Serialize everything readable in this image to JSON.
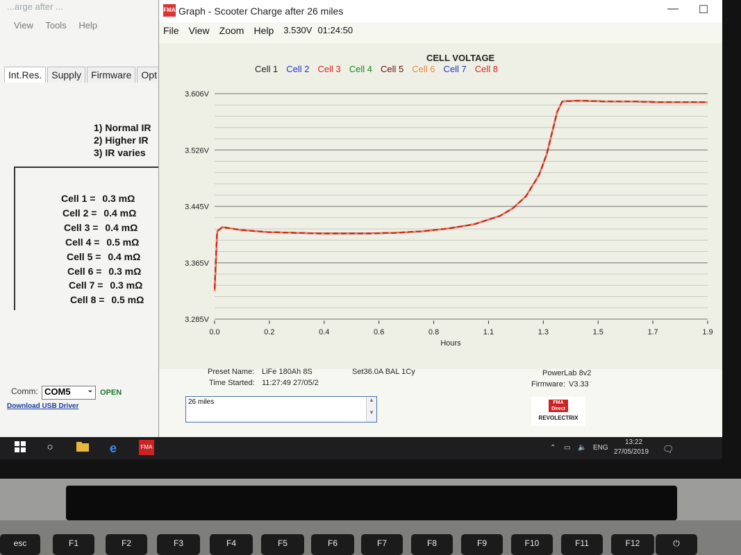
{
  "background_window": {
    "title": "...arge after ...",
    "menu": [
      "View",
      "Tools",
      "Help"
    ],
    "tabs": [
      "Int.Res.",
      "Supply",
      "Firmware",
      "Opt"
    ],
    "ir_notes": [
      "1) Normal IR",
      "2) Higher IR",
      "3) IR varies"
    ],
    "cells": [
      {
        "label": "Cell 1 =",
        "value": "0.3 mΩ"
      },
      {
        "label": "Cell 2 =",
        "value": "0.4 mΩ"
      },
      {
        "label": "Cell 3 =",
        "value": "0.4 mΩ"
      },
      {
        "label": "Cell 4 =",
        "value": "0.5 mΩ"
      },
      {
        "label": "Cell 5 =",
        "value": "0.4 mΩ"
      },
      {
        "label": "Cell 6 =",
        "value": "0.3 mΩ"
      },
      {
        "label": "Cell 7 =",
        "value": "0.3 mΩ"
      },
      {
        "label": "Cell 8 =",
        "value": "0.5 mΩ"
      }
    ],
    "comm_label": "Comm:",
    "comm_port": "COM5",
    "comm_status": "OPEN",
    "usb_link": "Download USB Driver"
  },
  "graph_window": {
    "app_icon_text": "FMA",
    "title": "Graph - Scooter Charge after 26 miles",
    "window_buttons": [
      "—",
      "☐",
      "✕"
    ],
    "menu": [
      "File",
      "View",
      "Zoom",
      "Help"
    ],
    "voltage_readout": "3.530V",
    "time_readout": "01:24:50",
    "preset_name_label": "Preset Name:",
    "preset_name": "LiFe 180Ah 8S",
    "preset_settings": "Set36.0A BAL 1Cy",
    "time_started_label": "Time Started:",
    "time_started": "11:27:49  27/05/2",
    "device": "PowerLab 8v2",
    "firmware_label": "Firmware:",
    "firmware": "V3.33",
    "notes_text": "26 miles",
    "logo_top": "FMA Direct",
    "logo_bottom": "REVOLECTRIX"
  },
  "chart_data": {
    "type": "line",
    "title": "CELL VOLTAGE",
    "xlabel": "Hours",
    "ylabel": "",
    "xlim": [
      0.0,
      1.9
    ],
    "ylim": [
      3.285,
      3.606
    ],
    "x_ticks": [
      "0.0",
      "0.2",
      "0.4",
      "0.6",
      "0.8",
      "1.1",
      "1.3",
      "1.5",
      "1.7",
      "1.9"
    ],
    "y_ticks": [
      "3.606V",
      "3.526V",
      "3.445V",
      "3.365V",
      "3.285V"
    ],
    "grid": true,
    "legend_position": "top",
    "series": [
      {
        "name": "Cell 1",
        "color": "#222222"
      },
      {
        "name": "Cell 2",
        "color": "#2233cc"
      },
      {
        "name": "Cell 3",
        "color": "#dd2222"
      },
      {
        "name": "Cell 4",
        "color": "#118822"
      },
      {
        "name": "Cell 5",
        "color": "#661111"
      },
      {
        "name": "Cell 6",
        "color": "#ee8844"
      },
      {
        "name": "Cell 7",
        "color": "#2233cc"
      },
      {
        "name": "Cell 8",
        "color": "#dd2222"
      }
    ],
    "curve": {
      "x": [
        0.0,
        0.01,
        0.03,
        0.1,
        0.2,
        0.3,
        0.4,
        0.5,
        0.6,
        0.7,
        0.8,
        0.9,
        1.0,
        1.1,
        1.15,
        1.2,
        1.25,
        1.28,
        1.3,
        1.32,
        1.34,
        1.4,
        1.5,
        1.6,
        1.7,
        1.8,
        1.9
      ],
      "y": [
        3.325,
        3.41,
        3.416,
        3.412,
        3.409,
        3.408,
        3.407,
        3.407,
        3.407,
        3.408,
        3.41,
        3.414,
        3.42,
        3.432,
        3.443,
        3.46,
        3.49,
        3.52,
        3.55,
        3.58,
        3.595,
        3.596,
        3.595,
        3.595,
        3.594,
        3.594,
        3.594
      ]
    }
  },
  "taskbar": {
    "search_icon": "○",
    "edge_icon": "e",
    "app_text": "FMA",
    "lang": "ENG",
    "time": "13:22",
    "date": "27/05/2019"
  },
  "keyboard": {
    "keys": [
      "esc",
      "F1",
      "F2",
      "F3",
      "F4",
      "F5",
      "F6",
      "F7",
      "F8",
      "F9",
      "F10",
      "F11",
      "F12",
      "⏻"
    ]
  }
}
